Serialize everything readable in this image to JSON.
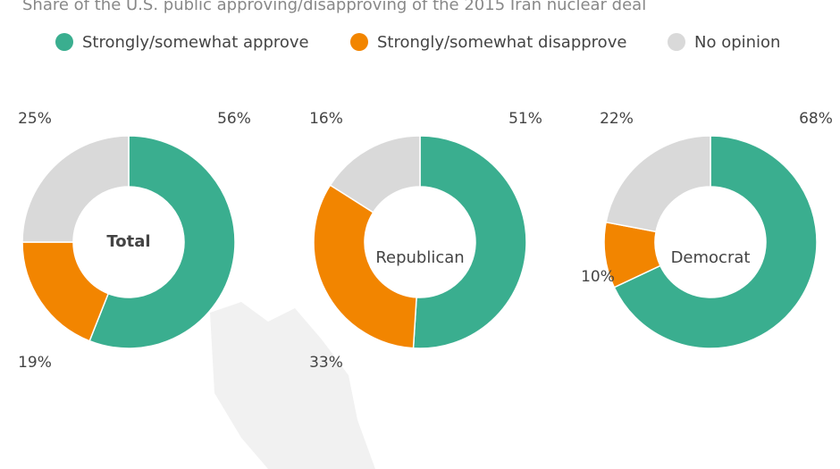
{
  "chart_data": {
    "type": "donut",
    "title": "Share of the U.S. public approving/disapproving of the 2015 Iran nuclear deal",
    "categories": [
      "Strongly/somewhat approve",
      "Strongly/somewhat disapprove",
      "No opinion"
    ],
    "colors": [
      "#3aae8f",
      "#f28500",
      "#d9d9d9"
    ],
    "series": [
      {
        "name": "Total",
        "values": [
          56,
          19,
          25
        ],
        "value_labels": [
          "56%",
          "19%",
          "25%"
        ]
      },
      {
        "name": "Republican",
        "values": [
          51,
          33,
          16
        ],
        "value_labels": [
          "51%",
          "33%",
          "16%"
        ]
      },
      {
        "name": "Democrat",
        "values": [
          68,
          10,
          22
        ],
        "value_labels": [
          "68%",
          "10%",
          "22%"
        ]
      }
    ]
  }
}
